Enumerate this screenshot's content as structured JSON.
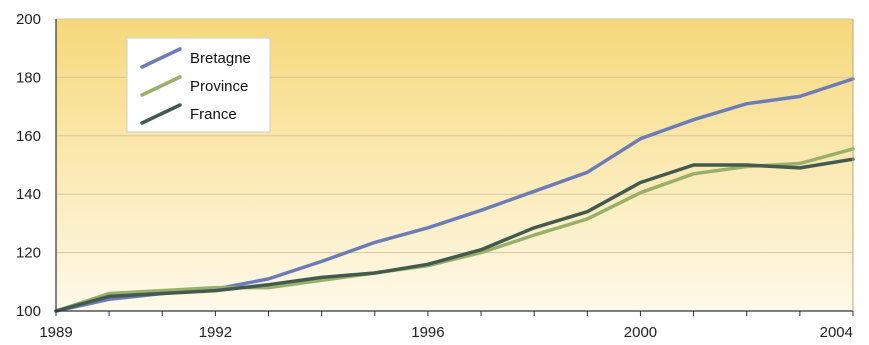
{
  "chart_data": {
    "type": "line",
    "title": "",
    "xlabel": "",
    "ylabel": "",
    "x": [
      1989,
      1990,
      1991,
      1992,
      1993,
      1994,
      1995,
      1996,
      1997,
      1998,
      1999,
      2000,
      2001,
      2002,
      2003,
      2004
    ],
    "xlim": [
      1989,
      2004
    ],
    "ylim": [
      100,
      200
    ],
    "x_ticks": [
      1989,
      1992,
      1996,
      2000,
      2004
    ],
    "y_ticks": [
      100,
      120,
      140,
      160,
      180,
      200
    ],
    "x_tick_labels": [
      "1989",
      "1992",
      "1996",
      "2000",
      "2004"
    ],
    "y_tick_labels": [
      "100",
      "120",
      "140",
      "160",
      "180",
      "200"
    ],
    "grid": "horizontal",
    "background": "yellow-gradient",
    "legend_position": "top-left",
    "series": [
      {
        "name": "Bretagne",
        "color": "#6b7cb8",
        "values": [
          100,
          104,
          106,
          107.5,
          111,
          117,
          123.5,
          128.5,
          134.5,
          141,
          147.5,
          159,
          165.5,
          171,
          173.5,
          179.5
        ]
      },
      {
        "name": "Province",
        "color": "#98b06a",
        "values": [
          100,
          106,
          107,
          108,
          108,
          110.5,
          113,
          115.5,
          120,
          126,
          131.5,
          140.5,
          147,
          149.5,
          150.5,
          155.5
        ]
      },
      {
        "name": "France",
        "color": "#435a50",
        "values": [
          100,
          105,
          106,
          107,
          109,
          111.5,
          113,
          116,
          121,
          128.5,
          134,
          144,
          150,
          150,
          149,
          152
        ]
      }
    ]
  }
}
